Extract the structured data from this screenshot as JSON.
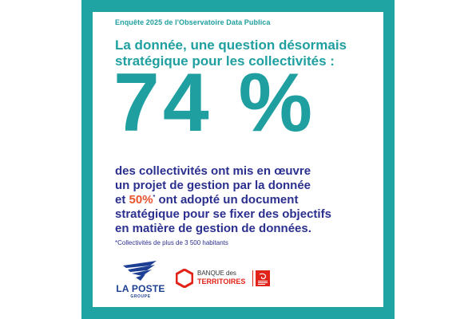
{
  "survey_label": "Enquête 2025 de l'Observatoire Data Publica",
  "headline": {
    "line1": "La donnée, une question désormais",
    "line2": "stratégique pour les collectivités :"
  },
  "big_stat": "74 %",
  "body": {
    "line1": "des collectivités ont mis en œuvre",
    "line2": "un projet de gestion par la donnée",
    "line3_prefix": "et",
    "line3_stat": "50%",
    "line3_mark": "*",
    "line3_suffix": "ont adopté un document",
    "line4": "stratégique pour se fixer des objectifs",
    "line5": "en matière de gestion de données."
  },
  "footnote": "*Collectivités de plus de 3 500 habitants",
  "logos": {
    "la_poste": {
      "name": "LA POSTE",
      "sub": "GROUPE"
    },
    "banque": {
      "line1": "BANQUE des",
      "line2": "TERRITOIRES"
    }
  },
  "colors": {
    "teal": "#1fa3a3",
    "navy": "#2b2f8e",
    "orange": "#e8532e",
    "red": "#e2231a"
  }
}
